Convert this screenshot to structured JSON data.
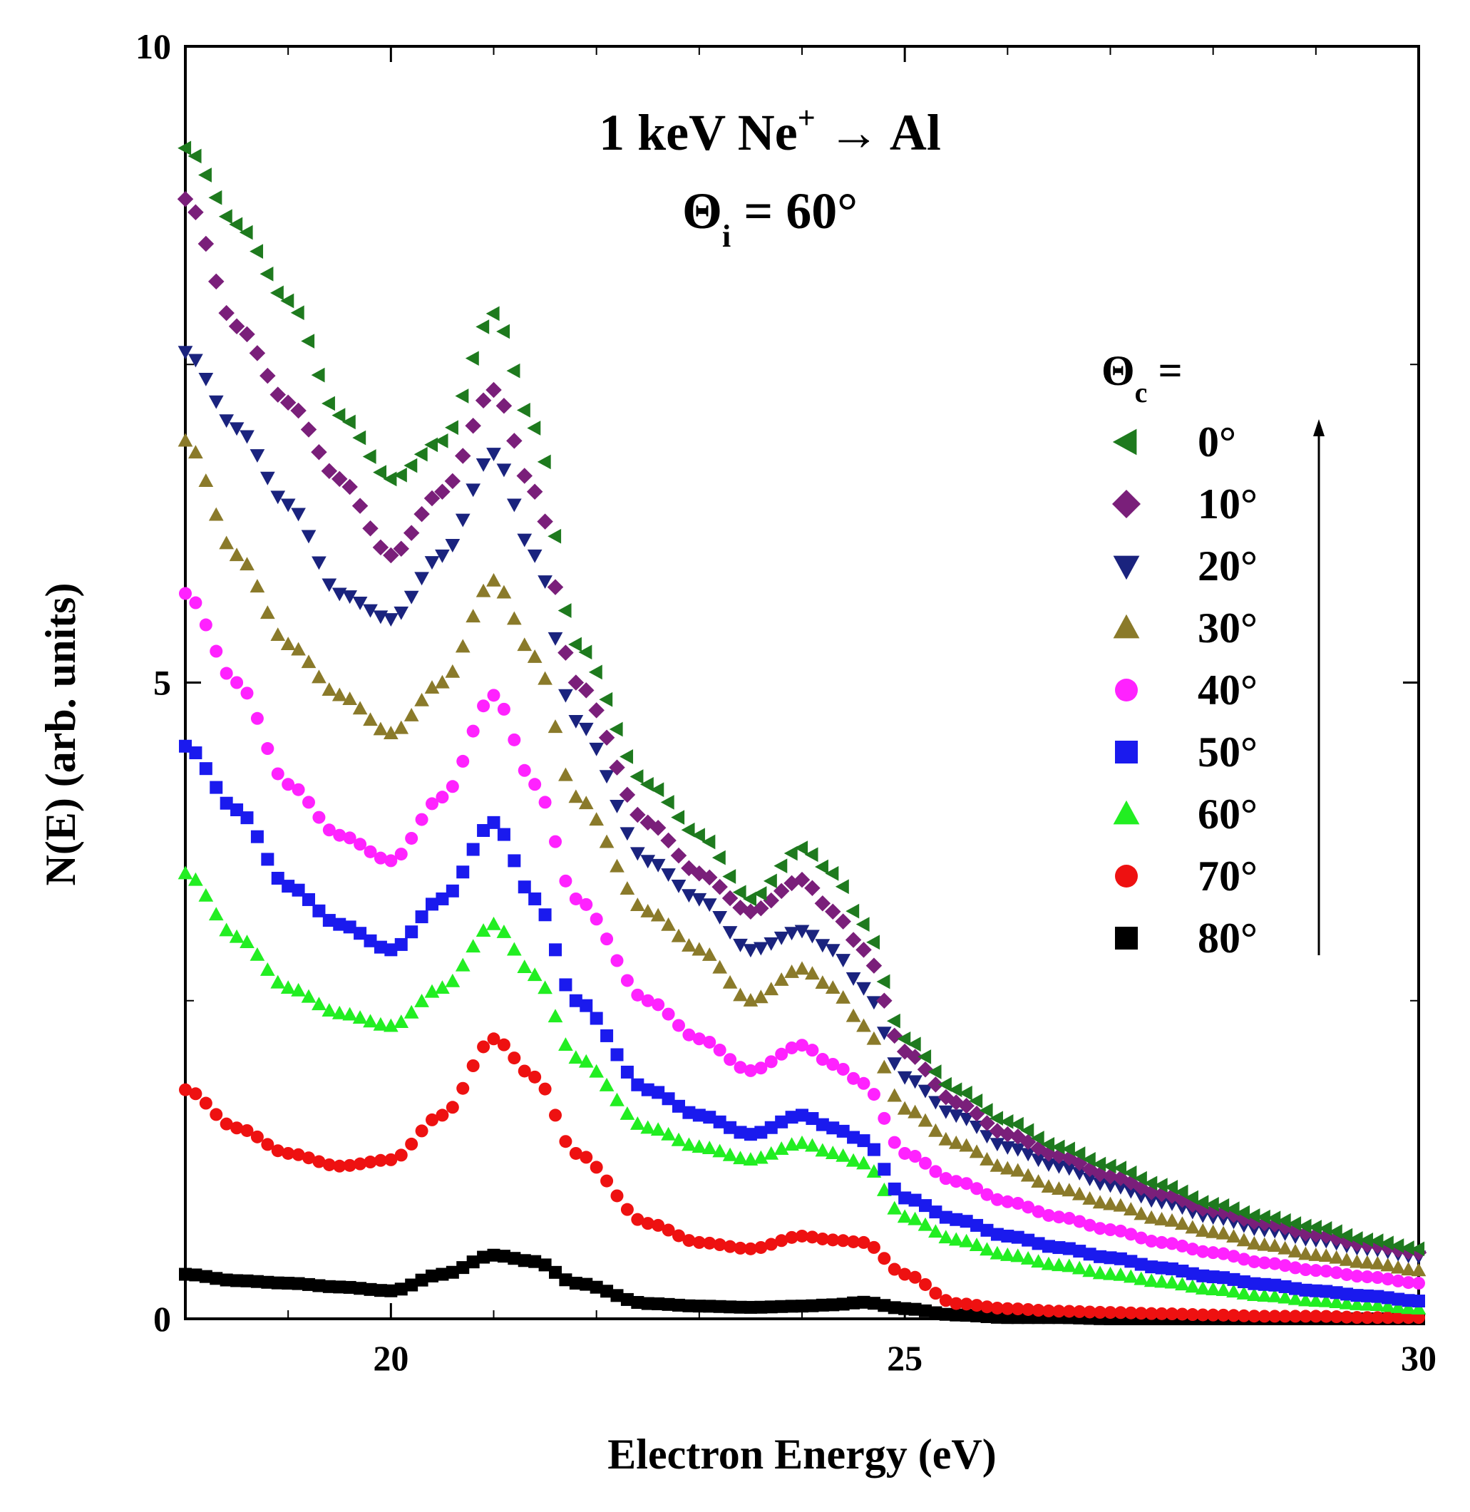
{
  "chart_data": {
    "type": "scatter",
    "title": {
      "line1_main": "1 keV Ne",
      "line1_sup": "+",
      "line1_rest": " → Al",
      "line2_main": "Θ",
      "line2_sub": "i",
      "line2_rest": " = 60°"
    },
    "xlabel": "Electron Energy (eV)",
    "ylabel": "N(E) (arb. units)",
    "xlim": [
      18,
      30
    ],
    "ylim": [
      0,
      10
    ],
    "xticks": [
      20,
      25,
      30
    ],
    "yticks": [
      0,
      5,
      10
    ],
    "xtick_labels": [
      "20",
      "25",
      "30"
    ],
    "ytick_labels": [
      "0",
      "5",
      "10"
    ],
    "grid": false,
    "legend": {
      "placement": "right",
      "title_main": "Θ",
      "title_sub": "c",
      "title_rest": " =",
      "arrow_direction": "up"
    },
    "series": [
      {
        "name": "0°",
        "marker": "triangle-left",
        "color": "#1e7a1e",
        "x": [
          18,
          18.5,
          19,
          19.5,
          20,
          20.5,
          21,
          21.4,
          21.8,
          22.5,
          23,
          23.5,
          24,
          24.3,
          24.6,
          25,
          25.5,
          26,
          26.5,
          27,
          27.5,
          28,
          28.5,
          29,
          29.5,
          30
        ],
        "y": [
          9.2,
          8.6,
          8.0,
          7.1,
          6.6,
          6.9,
          7.9,
          7.0,
          5.3,
          4.2,
          3.8,
          3.3,
          3.7,
          3.5,
          3.1,
          2.2,
          1.8,
          1.55,
          1.35,
          1.2,
          1.05,
          0.9,
          0.8,
          0.72,
          0.62,
          0.55
        ]
      },
      {
        "name": "10°",
        "marker": "diamond",
        "color": "#7a1f7a",
        "x": [
          18,
          18.5,
          19,
          19.5,
          20,
          20.5,
          21,
          21.4,
          21.8,
          22.5,
          23,
          23.5,
          24,
          24.3,
          24.6,
          25,
          25.5,
          26,
          26.5,
          27,
          27.5,
          28,
          28.5,
          29,
          29.5,
          30
        ],
        "y": [
          8.8,
          7.8,
          7.2,
          6.6,
          6.0,
          6.5,
          7.3,
          6.5,
          5.0,
          3.9,
          3.5,
          3.2,
          3.45,
          3.2,
          2.9,
          2.1,
          1.7,
          1.45,
          1.28,
          1.12,
          0.98,
          0.85,
          0.75,
          0.66,
          0.58,
          0.52
        ]
      },
      {
        "name": "20°",
        "marker": "triangle-down",
        "color": "#1a237e",
        "x": [
          18,
          18.5,
          19,
          19.5,
          20,
          20.5,
          21,
          21.4,
          21.8,
          22.5,
          23,
          23.5,
          24,
          24.3,
          24.6,
          25,
          25.5,
          26,
          26.5,
          27,
          27.5,
          28,
          28.5,
          29,
          29.5,
          30
        ],
        "y": [
          7.6,
          7.0,
          6.4,
          5.7,
          5.5,
          6.0,
          6.8,
          6.0,
          4.7,
          3.6,
          3.3,
          2.9,
          3.05,
          2.9,
          2.6,
          1.9,
          1.6,
          1.35,
          1.2,
          1.05,
          0.92,
          0.8,
          0.7,
          0.62,
          0.55,
          0.49
        ]
      },
      {
        "name": "30°",
        "marker": "triangle-up",
        "color": "#8a7a2a",
        "x": [
          18,
          18.5,
          19,
          19.5,
          20,
          20.5,
          21,
          21.4,
          21.8,
          22.5,
          23,
          23.5,
          24,
          24.3,
          24.6,
          25,
          25.5,
          26,
          26.5,
          27,
          27.5,
          28,
          28.5,
          29,
          29.5,
          30
        ],
        "y": [
          6.9,
          6.0,
          5.3,
          4.9,
          4.6,
          5.0,
          5.8,
          5.2,
          4.1,
          3.2,
          2.9,
          2.5,
          2.75,
          2.6,
          2.3,
          1.65,
          1.38,
          1.18,
          1.02,
          0.9,
          0.78,
          0.68,
          0.58,
          0.5,
          0.44,
          0.38
        ]
      },
      {
        "name": "40°",
        "marker": "circle",
        "color": "#ff22ff",
        "x": [
          18,
          18.5,
          19,
          19.5,
          20,
          20.5,
          21,
          21.4,
          21.8,
          22.5,
          23,
          23.5,
          24,
          24.3,
          24.6,
          25,
          25.5,
          26,
          26.5,
          27,
          27.5,
          28,
          28.5,
          29,
          29.5,
          30
        ],
        "y": [
          5.7,
          5.0,
          4.2,
          3.8,
          3.6,
          4.1,
          4.9,
          4.2,
          3.3,
          2.5,
          2.2,
          1.95,
          2.15,
          2.0,
          1.85,
          1.3,
          1.08,
          0.92,
          0.8,
          0.7,
          0.6,
          0.52,
          0.44,
          0.38,
          0.33,
          0.28
        ]
      },
      {
        "name": "50°",
        "marker": "square",
        "color": "#1a1aee",
        "x": [
          18,
          18.5,
          19,
          19.5,
          20,
          20.5,
          21,
          21.4,
          21.8,
          22.5,
          23,
          23.5,
          24,
          24.3,
          24.6,
          25,
          25.5,
          26,
          26.5,
          27,
          27.5,
          28,
          28.5,
          29,
          29.5,
          30
        ],
        "y": [
          4.5,
          4.0,
          3.4,
          3.1,
          2.9,
          3.3,
          3.9,
          3.3,
          2.5,
          1.8,
          1.6,
          1.45,
          1.6,
          1.5,
          1.4,
          0.95,
          0.78,
          0.65,
          0.56,
          0.48,
          0.4,
          0.33,
          0.27,
          0.22,
          0.18,
          0.14
        ]
      },
      {
        "name": "60°",
        "marker": "triangle-up",
        "color": "#22ee22",
        "x": [
          18,
          18.5,
          19,
          19.5,
          20,
          20.5,
          21,
          21.4,
          21.8,
          22.5,
          23,
          23.5,
          24,
          24.3,
          24.6,
          25,
          25.5,
          26,
          26.5,
          27,
          27.5,
          28,
          28.5,
          29,
          29.5,
          30
        ],
        "y": [
          3.5,
          3.0,
          2.6,
          2.4,
          2.3,
          2.6,
          3.1,
          2.7,
          2.05,
          1.5,
          1.35,
          1.25,
          1.38,
          1.3,
          1.22,
          0.8,
          0.62,
          0.5,
          0.42,
          0.35,
          0.29,
          0.23,
          0.18,
          0.14,
          0.11,
          0.08
        ]
      },
      {
        "name": "70°",
        "marker": "circle",
        "color": "#ee1111",
        "x": [
          18,
          18.5,
          19,
          19.5,
          20,
          20.5,
          21,
          21.4,
          21.8,
          22.5,
          23,
          23.5,
          24,
          24.3,
          24.6,
          25,
          25.5,
          26,
          26.5,
          27,
          27.5,
          28,
          28.5,
          29,
          29.5,
          30
        ],
        "y": [
          1.8,
          1.5,
          1.3,
          1.2,
          1.25,
          1.6,
          2.2,
          1.9,
          1.3,
          0.75,
          0.6,
          0.55,
          0.65,
          0.62,
          0.6,
          0.35,
          0.12,
          0.08,
          0.06,
          0.05,
          0.04,
          0.03,
          0.02,
          0.02,
          0.01,
          0.01
        ]
      },
      {
        "name": "80°",
        "marker": "square",
        "color": "#000000",
        "x": [
          18,
          18.5,
          19,
          19.5,
          20,
          20.5,
          21,
          21.4,
          21.8,
          22.5,
          23,
          23.5,
          24,
          24.3,
          24.6,
          25,
          25.5,
          26,
          26.5,
          27,
          27.5,
          28,
          28.5,
          29,
          29.5,
          30
        ],
        "y": [
          0.35,
          0.3,
          0.28,
          0.25,
          0.22,
          0.35,
          0.5,
          0.45,
          0.28,
          0.12,
          0.1,
          0.09,
          0.1,
          0.11,
          0.13,
          0.08,
          0.03,
          0.01,
          0.01,
          0.0,
          0.0,
          0.0,
          0.0,
          0.0,
          0.0,
          0.0
        ]
      }
    ]
  }
}
